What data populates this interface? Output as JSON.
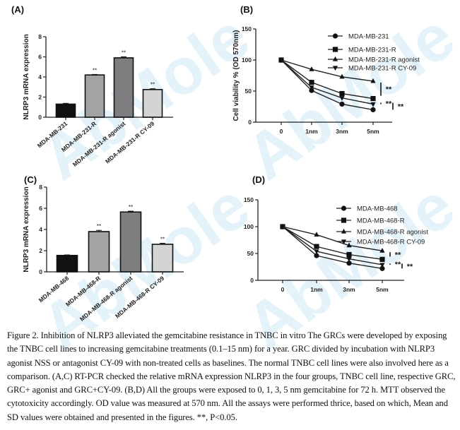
{
  "watermark": "AbMole",
  "panel_labels": [
    "(A)",
    "(B)",
    "(C)",
    "(D)"
  ],
  "chart_data": [
    {
      "id": "A",
      "type": "bar",
      "title": "",
      "xlabel": "",
      "ylabel": "NLRP3 mRNA expression",
      "ylim": [
        0,
        8
      ],
      "yticks": [
        0,
        2,
        4,
        6,
        8
      ],
      "grid": false,
      "categories": [
        "MDA-MB-231",
        "MDA-MB-231-R",
        "MDA-MB-231-R agonist",
        "MDA-MB-231-R CY-09"
      ],
      "values": [
        1.3,
        4.2,
        5.9,
        2.75
      ],
      "errors": [
        0.08,
        0.05,
        0.1,
        0.08
      ],
      "colors": [
        "#111111",
        "#a3a3a6",
        "#7e7e80",
        "#d4d4d4"
      ],
      "annotations": [
        "",
        "**",
        "**",
        "**"
      ]
    },
    {
      "id": "B",
      "type": "line",
      "title": "",
      "xlabel": "",
      "ylabel": "Cell viability % (OD 570nm)",
      "ylim": [
        0,
        150
      ],
      "yticks": [
        0,
        50,
        100,
        150
      ],
      "grid": false,
      "x": [
        "0",
        "1nm",
        "3nm",
        "5nm"
      ],
      "legend_position": "top-right",
      "series": [
        {
          "name": "MDA-MB-231",
          "marker": "circle",
          "values": [
            100,
            51,
            29,
            20
          ]
        },
        {
          "name": "MDA-MB-231-R",
          "marker": "square",
          "values": [
            100,
            64,
            46,
            38
          ]
        },
        {
          "name": "MDA-MB-231-R agonist",
          "marker": "triangle-up",
          "values": [
            100,
            85,
            73,
            66
          ]
        },
        {
          "name": "MDA-MB-231-R CY-09",
          "marker": "triangle-down",
          "values": [
            100,
            56,
            39,
            29
          ]
        }
      ],
      "significance": [
        "**",
        "**",
        "**"
      ]
    },
    {
      "id": "C",
      "type": "bar",
      "title": "",
      "xlabel": "",
      "ylabel": "NLRP3 mRNA expression",
      "ylim": [
        0,
        8
      ],
      "yticks": [
        0,
        2,
        4,
        6,
        8
      ],
      "grid": false,
      "categories": [
        "MDA-MB-468",
        "MDA-MB-468-R",
        "MDA-MB-468-R agonist",
        "MDA-MB-468-R CY-09"
      ],
      "values": [
        1.55,
        3.8,
        5.65,
        2.6
      ],
      "errors": [
        0.05,
        0.12,
        0.08,
        0.1
      ],
      "colors": [
        "#111111",
        "#a3a3a6",
        "#7e7e80",
        "#d4d4d4"
      ],
      "annotations": [
        "",
        "**",
        "**",
        "**"
      ]
    },
    {
      "id": "D",
      "type": "line",
      "title": "",
      "xlabel": "",
      "ylabel": "",
      "ylim": [
        0,
        150
      ],
      "yticks": [
        0,
        50,
        100,
        150
      ],
      "grid": false,
      "x": [
        "0",
        "1nm",
        "3nm",
        "5nm"
      ],
      "legend_position": "top-right",
      "series": [
        {
          "name": "MDA-MB-468",
          "marker": "circle",
          "values": [
            100,
            46,
            32,
            22
          ]
        },
        {
          "name": "MDA-MB-468-R",
          "marker": "square",
          "values": [
            100,
            63,
            48,
            39
          ]
        },
        {
          "name": "MDA-MB-468-R agonist",
          "marker": "triangle-up",
          "values": [
            100,
            85,
            65,
            55
          ]
        },
        {
          "name": "MDA-MB-468-R CY-09",
          "marker": "triangle-down",
          "values": [
            100,
            54,
            40,
            29
          ]
        }
      ],
      "significance": [
        "**",
        "**",
        "**"
      ]
    }
  ],
  "caption": "Figure 2. Inhibition of NLRP3 alleviated the gemcitabine resistance in TNBC in vitro The GRCs were developed by exposing the TNBC cell lines to increasing gemcitabine treatments (0.1–15 nm) for a year. GRC divided by incubation with NLRP3 agonist NSS or antagonist CY-09 with non-treated cells as baselines. The normal TNBC cell lines were also involved here as a comparison. (A,C) RT-PCR checked the relative mRNA expression NLRP3 in the four groups, TNBC cell line, respective GRC, GRC+ agonist and GRC+CY-09. (B,D) All the groups were exposed to 0, 1, 3, 5 nm gemcitabine for 72 h. MTT observed the cytotoxicity accordingly. OD value was measured at 570 nm. All the assays were performed thrice, based on which, Mean and SD values were obtained and presented in the figures. **, P<0.05."
}
